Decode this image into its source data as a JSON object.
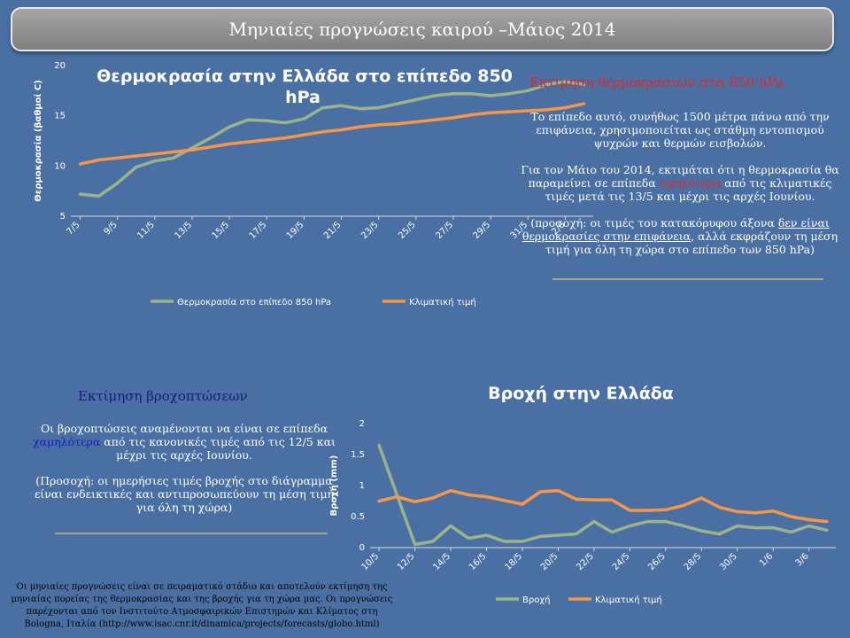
{
  "page_title": "Μηνιαίες προγνώσεις καιρού –Μάιος 2014",
  "temp_section": {
    "heading": "Εκτίμηση θερμοκρασιών στα 850 hPa",
    "p1": "Το επίπεδο αυτό, συνήθως 1500 μέτρα πάνω από την επιφάνεια, χρησιμοποιείται ως στάθμη  εντοπισμού ψυχρών και θερμών εισβολών.",
    "p2_a": "Για τον Μάιο του 2014, εκτιμάται ότι η θερμοκρασία θα παραμείνει σε επίπεδα ",
    "p2_hl": "υψηλότερα",
    "p2_b": " από τις κλιματικές τιμές μετά τις 13/5 και μέχρι τις αρχές Ιουνίου.",
    "note_a": "(προσοχή: οι τιμές του  κατακόρυφου άξονα ",
    "note_u": "δεν είναι θερμοκρασίες στην επιφάνεια",
    "note_b": ", αλλά εκφράζουν τη μέση τιμή για όλη τη χώρα στο επίπεδο των 850 hPa)"
  },
  "rain_section": {
    "heading": "Εκτίμηση βροχοπτώσεων",
    "p1_a": "Οι βροχοπτώσεις αναμένονται να είναι σε επίπεδα ",
    "p1_hl": "χαμηλότερα",
    "p1_b": " από τις κανονικές τιμές από τις 12/5 και μέχρι τις αρχές Ιουνίου.",
    "note": "(Προσοχή: οι ημερήσιες τιμές βροχής στο διάγραμμα είναι ενδεικτικές και  αντιπροσωπεύουν τη μέση τιμή για όλη τη χώρα)"
  },
  "footer": "Οι μηνιαίες προγνώσεις  είναι σε πειραματικό στάδιο και αποτελούν  εκτίμηση της μηνιαίας πορείας της θερμοκρασίας και της βροχής για τη χώρα μας. Οι προγνώσεις παρέχονται από τον Ινστιτούτο Ατμοσφαιρικών Επιστημών και Κλίματος στη Bologna, Ιταλία (http://www.isac.cnr.it/dinamica/projects/forecasts/globo.html)",
  "colors": {
    "forecast": "#9bb38a",
    "climate": "#f79646",
    "highlight_red": "#e3262b",
    "highlight_blue": "#1a1ac8"
  },
  "chart_data": [
    {
      "type": "line",
      "title": "Θερμοκρασία στην Ελλάδα στο επίπεδο 850 hPa",
      "title_line1": "Θερμοκρασία στην Ελλάδα στο επίπεδο 850",
      "title_line2": "hPa",
      "ylabel": "Θερμοκρασία  (βαθμοί C)",
      "ylim": [
        5,
        20
      ],
      "yticks": [
        5,
        10,
        15,
        20
      ],
      "categories": [
        "7/5",
        "8/5",
        "9/5",
        "10/5",
        "11/5",
        "12/5",
        "13/5",
        "14/5",
        "15/5",
        "16/5",
        "17/5",
        "18/5",
        "19/5",
        "20/5",
        "21/5",
        "22/5",
        "23/5",
        "24/5",
        "25/5",
        "26/5",
        "27/5",
        "28/5",
        "29/5",
        "30/5",
        "31/5",
        "1/6",
        "2/6",
        "3/6"
      ],
      "xtick_labels": [
        "7/5",
        "9/5",
        "11/5",
        "13/5",
        "15/5",
        "17/5",
        "19/5",
        "21/5",
        "23/5",
        "25/5",
        "27/5",
        "29/5",
        "31/5",
        "2/6"
      ],
      "series": [
        {
          "name": "Θερμοκρασία  στο επίπεδο 850 hPa",
          "values": [
            7.2,
            7.0,
            8.3,
            9.9,
            10.5,
            10.8,
            11.8,
            12.8,
            13.9,
            14.6,
            14.5,
            14.3,
            14.7,
            15.8,
            16.0,
            15.7,
            15.8,
            16.2,
            16.6,
            17.0,
            17.2,
            17.2,
            17.0,
            17.2,
            17.5,
            18.1,
            18.4,
            18.1
          ]
        },
        {
          "name": "Κλιματική  τιμή",
          "values": [
            10.2,
            10.6,
            10.8,
            11.0,
            11.2,
            11.4,
            11.6,
            11.9,
            12.2,
            12.4,
            12.6,
            12.8,
            13.1,
            13.4,
            13.6,
            13.9,
            14.1,
            14.2,
            14.4,
            14.6,
            14.8,
            15.1,
            15.3,
            15.4,
            15.5,
            15.6,
            15.8,
            16.2
          ]
        }
      ]
    },
    {
      "type": "line",
      "title": "Βροχή στην Ελλάδα",
      "ylabel": "Βροχή (mm)",
      "ylim": [
        0,
        2
      ],
      "yticks": [
        0,
        0.5,
        1,
        1.5,
        2
      ],
      "ytick_labels": [
        "0",
        "0.5",
        "1",
        "1.5",
        "2"
      ],
      "categories": [
        "10/5",
        "11/5",
        "12/5",
        "13/5",
        "14/5",
        "15/5",
        "16/5",
        "17/5",
        "18/5",
        "19/5",
        "20/5",
        "21/5",
        "22/5",
        "23/5",
        "24/5",
        "25/5",
        "26/5",
        "27/5",
        "28/5",
        "29/5",
        "30/5",
        "31/5",
        "1/6",
        "2/6",
        "3/6",
        "4/6"
      ],
      "xtick_labels": [
        "10/5",
        "12/5",
        "14/5",
        "16/5",
        "18/5",
        "20/5",
        "22/5",
        "24/5",
        "26/5",
        "28/5",
        "30/5",
        "1/6",
        "3/6"
      ],
      "series": [
        {
          "name": "Βροχή",
          "values": [
            1.65,
            0.85,
            0.05,
            0.1,
            0.35,
            0.15,
            0.2,
            0.1,
            0.1,
            0.18,
            0.2,
            0.22,
            0.42,
            0.25,
            0.35,
            0.42,
            0.42,
            0.35,
            0.27,
            0.22,
            0.35,
            0.32,
            0.32,
            0.25,
            0.35,
            0.28
          ]
        },
        {
          "name": "Κλιματική  τιμή",
          "values": [
            0.75,
            0.82,
            0.74,
            0.8,
            0.92,
            0.85,
            0.82,
            0.76,
            0.7,
            0.9,
            0.92,
            0.78,
            0.77,
            0.77,
            0.6,
            0.6,
            0.61,
            0.68,
            0.8,
            0.65,
            0.58,
            0.56,
            0.59,
            0.5,
            0.45,
            0.42
          ]
        }
      ]
    }
  ]
}
